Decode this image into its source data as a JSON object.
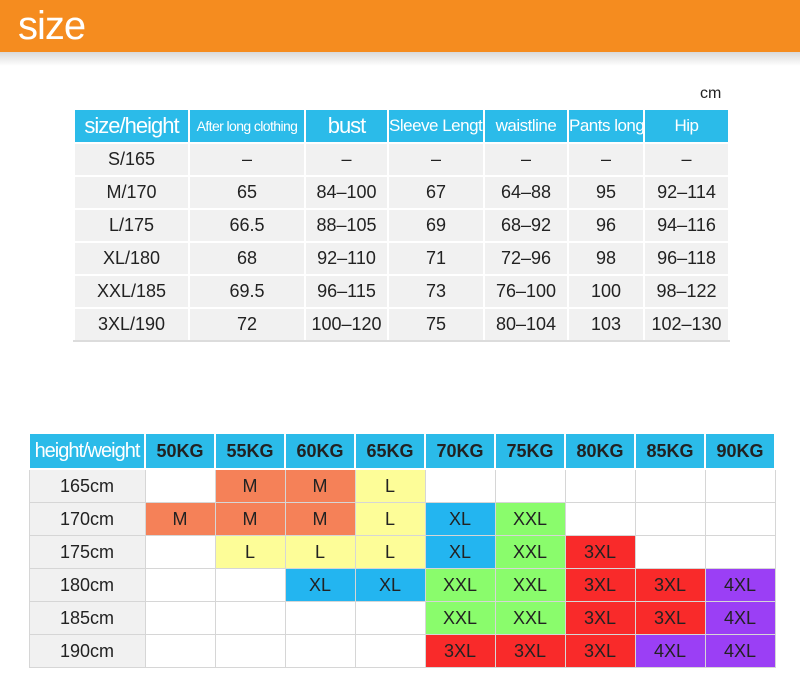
{
  "banner": {
    "title": "size"
  },
  "unit": "cm",
  "size_table": {
    "headers": [
      "size/height",
      "After long clothing",
      "bust",
      "Sleeve Length",
      "waistline",
      "Pants long",
      "Hip"
    ],
    "rows": [
      [
        "S/165",
        "–",
        "–",
        "–",
        "–",
        "–",
        "–"
      ],
      [
        "M/170",
        "65",
        "84–100",
        "67",
        "64–88",
        "95",
        "92–114"
      ],
      [
        "L/175",
        "66.5",
        "88–105",
        "69",
        "68–92",
        "96",
        "94–116"
      ],
      [
        "XL/180",
        "68",
        "92–110",
        "71",
        "72–96",
        "98",
        "96–118"
      ],
      [
        "XXL/185",
        "69.5",
        "96–115",
        "73",
        "76–100",
        "100",
        "98–122"
      ],
      [
        "3XL/190",
        "72",
        "100–120",
        "75",
        "80–104",
        "103",
        "102–130"
      ]
    ]
  },
  "hw_table": {
    "corner": "height/weight",
    "weights": [
      "50KG",
      "55KG",
      "60KG",
      "65KG",
      "70KG",
      "75KG",
      "80KG",
      "85KG",
      "90KG"
    ],
    "rows": [
      {
        "height": "165cm",
        "cells": [
          "",
          "M",
          "M",
          "L",
          "",
          "",
          "",
          "",
          ""
        ]
      },
      {
        "height": "170cm",
        "cells": [
          "M",
          "M",
          "M",
          "L",
          "XL",
          "XXL",
          "",
          "",
          ""
        ]
      },
      {
        "height": "175cm",
        "cells": [
          "",
          "L",
          "L",
          "L",
          "XL",
          "XXL",
          "3XL",
          "",
          ""
        ]
      },
      {
        "height": "180cm",
        "cells": [
          "",
          "",
          "XL",
          "XL",
          "XXL",
          "XXL",
          "3XL",
          "3XL",
          "4XL"
        ]
      },
      {
        "height": "185cm",
        "cells": [
          "",
          "",
          "",
          "",
          "XXL",
          "XXL",
          "3XL",
          "3XL",
          "4XL"
        ]
      },
      {
        "height": "190cm",
        "cells": [
          "",
          "",
          "",
          "",
          "3XL",
          "3XL",
          "3XL",
          "4XL",
          "4XL"
        ]
      }
    ],
    "size_colors": {
      "M": "#f58158",
      "L": "#fdfd98",
      "XL": "#23b5f0",
      "XXL": "#8afc6c",
      "3XL": "#f92a2a",
      "4XL": "#9b3ff5"
    }
  },
  "colors": {
    "banner": "#f58c1f",
    "header": "#2bbbe9",
    "row_bg": "#f1f1f1"
  }
}
